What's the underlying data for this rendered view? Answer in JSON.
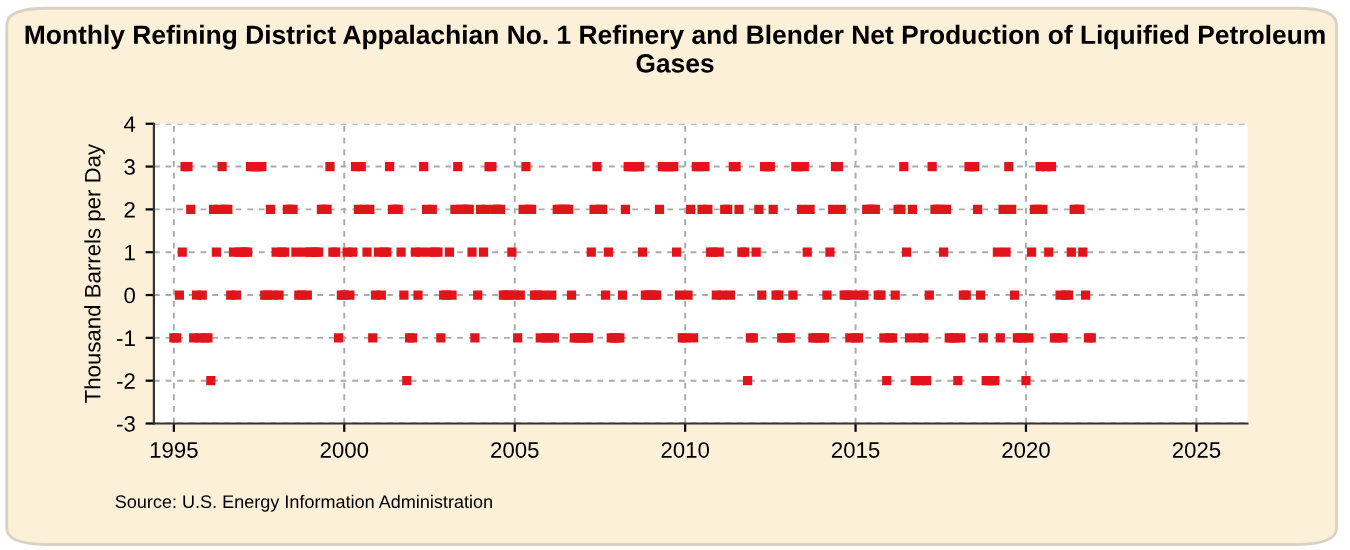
{
  "chart_data": {
    "type": "scatter",
    "title": "Monthly Refining District Appalachian No. 1 Refinery and Blender Net Production of Liquified Petroleum Gases",
    "ylabel": "Thousand Barrels per Day",
    "annotations": [
      "Source: U.S. Energy Information Administration"
    ],
    "x": [
      "1995-01",
      "1995-02",
      "1995-03",
      "1995-04",
      "1995-05",
      "1995-06",
      "1995-07",
      "1995-08",
      "1995-09",
      "1995-10",
      "1995-11",
      "1995-12",
      "1996-01",
      "1996-02",
      "1996-03",
      "1996-04",
      "1996-05",
      "1996-06",
      "1996-07",
      "1996-08",
      "1996-09",
      "1996-10",
      "1996-11",
      "1996-12",
      "1997-01",
      "1997-02",
      "1997-03",
      "1997-04",
      "1997-05",
      "1997-06",
      "1997-07",
      "1997-08",
      "1997-09",
      "1997-10",
      "1997-11",
      "1997-12",
      "1998-01",
      "1998-02",
      "1998-03",
      "1998-04",
      "1998-05",
      "1998-06",
      "1998-07",
      "1998-08",
      "1998-09",
      "1998-10",
      "1998-11",
      "1998-12",
      "1999-01",
      "1999-02",
      "1999-03",
      "1999-04",
      "1999-05",
      "1999-06",
      "1999-07",
      "1999-08",
      "1999-09",
      "1999-10",
      "1999-11",
      "1999-12",
      "2000-01",
      "2000-02",
      "2000-03",
      "2000-04",
      "2000-05",
      "2000-06",
      "2000-07",
      "2000-08",
      "2000-09",
      "2000-10",
      "2000-11",
      "2000-12",
      "2001-01",
      "2001-02",
      "2001-03",
      "2001-04",
      "2001-05",
      "2001-06",
      "2001-07",
      "2001-08",
      "2001-09",
      "2001-10",
      "2001-11",
      "2001-12",
      "2002-01",
      "2002-02",
      "2002-03",
      "2002-04",
      "2002-05",
      "2002-06",
      "2002-07",
      "2002-08",
      "2002-09",
      "2002-10",
      "2002-11",
      "2002-12",
      "2003-01",
      "2003-02",
      "2003-03",
      "2003-04",
      "2003-05",
      "2003-06",
      "2003-07",
      "2003-08",
      "2003-09",
      "2003-10",
      "2003-11",
      "2003-12",
      "2004-01",
      "2004-02",
      "2004-03",
      "2004-04",
      "2004-05",
      "2004-06",
      "2004-07",
      "2004-08",
      "2004-09",
      "2004-10",
      "2004-11",
      "2004-12",
      "2005-01",
      "2005-02",
      "2005-03",
      "2005-04",
      "2005-05",
      "2005-06",
      "2005-07",
      "2005-08",
      "2005-09",
      "2005-10",
      "2005-11",
      "2005-12",
      "2006-01",
      "2006-02",
      "2006-03",
      "2006-04",
      "2006-05",
      "2006-06",
      "2006-07",
      "2006-08",
      "2006-09",
      "2006-10",
      "2006-11",
      "2006-12",
      "2007-01",
      "2007-02",
      "2007-03",
      "2007-04",
      "2007-05",
      "2007-06",
      "2007-07",
      "2007-08",
      "2007-09",
      "2007-10",
      "2007-11",
      "2007-12",
      "2008-01",
      "2008-02",
      "2008-03",
      "2008-04",
      "2008-05",
      "2008-06",
      "2008-07",
      "2008-08",
      "2008-09",
      "2008-10",
      "2008-11",
      "2008-12",
      "2009-01",
      "2009-02",
      "2009-03",
      "2009-04",
      "2009-05",
      "2009-06",
      "2009-07",
      "2009-08",
      "2009-09",
      "2009-10",
      "2009-11",
      "2009-12",
      "2010-01",
      "2010-02",
      "2010-03",
      "2010-04",
      "2010-05",
      "2010-06",
      "2010-07",
      "2010-08",
      "2010-09",
      "2010-10",
      "2010-11",
      "2010-12",
      "2011-01",
      "2011-02",
      "2011-03",
      "2011-04",
      "2011-05",
      "2011-06",
      "2011-07",
      "2011-08",
      "2011-09",
      "2011-10",
      "2011-11",
      "2011-12",
      "2012-01",
      "2012-02",
      "2012-03",
      "2012-04",
      "2012-05",
      "2012-06",
      "2012-07",
      "2012-08",
      "2012-09",
      "2012-10",
      "2012-11",
      "2012-12",
      "2013-01",
      "2013-02",
      "2013-03",
      "2013-04",
      "2013-05",
      "2013-06",
      "2013-07",
      "2013-08",
      "2013-09",
      "2013-10",
      "2013-11",
      "2013-12",
      "2014-01",
      "2014-02",
      "2014-03",
      "2014-04",
      "2014-05",
      "2014-06",
      "2014-07",
      "2014-08",
      "2014-09",
      "2014-10",
      "2014-11",
      "2014-12",
      "2015-01",
      "2015-02",
      "2015-03",
      "2015-04",
      "2015-05",
      "2015-06",
      "2015-07",
      "2015-08",
      "2015-09",
      "2015-10",
      "2015-11",
      "2015-12",
      "2016-01",
      "2016-02",
      "2016-03",
      "2016-04",
      "2016-05",
      "2016-06",
      "2016-07",
      "2016-08",
      "2016-09",
      "2016-10",
      "2016-11",
      "2016-12",
      "2017-01",
      "2017-02",
      "2017-03",
      "2017-04",
      "2017-05",
      "2017-06",
      "2017-07",
      "2017-08",
      "2017-09",
      "2017-10",
      "2017-11",
      "2017-12",
      "2018-01",
      "2018-02",
      "2018-03",
      "2018-04",
      "2018-05",
      "2018-06",
      "2018-07",
      "2018-08",
      "2018-09",
      "2018-10",
      "2018-11",
      "2018-12",
      "2019-01",
      "2019-02",
      "2019-03",
      "2019-04",
      "2019-05",
      "2019-06",
      "2019-07",
      "2019-08",
      "2019-09",
      "2019-10",
      "2019-11",
      "2019-12",
      "2020-01",
      "2020-02",
      "2020-03",
      "2020-04",
      "2020-05",
      "2020-06",
      "2020-07",
      "2020-08",
      "2020-09",
      "2020-10",
      "2020-11",
      "2020-12",
      "2021-01",
      "2021-02",
      "2021-03",
      "2021-04",
      "2021-05",
      "2021-06",
      "2021-07",
      "2021-08",
      "2021-09",
      "2021-10",
      "2021-11",
      "2021-12"
    ],
    "series": [
      {
        "color": "#e2141b",
        "values": [
          -1,
          -1,
          0,
          1,
          3,
          3,
          2,
          -1,
          0,
          -1,
          0,
          -1,
          -1,
          -2,
          2,
          1,
          2,
          3,
          2,
          2,
          0,
          1,
          0,
          1,
          1,
          1,
          1,
          3,
          3,
          3,
          3,
          3,
          0,
          0,
          2,
          0,
          1,
          0,
          1,
          1,
          2,
          2,
          2,
          1,
          0,
          0,
          1,
          0,
          1,
          1,
          1,
          1,
          2,
          2,
          2,
          3,
          1,
          1,
          -1,
          0,
          0,
          1,
          0,
          1,
          3,
          2,
          3,
          2,
          1,
          2,
          -1,
          0,
          1,
          0,
          1,
          1,
          3,
          2,
          2,
          2,
          1,
          0,
          -2,
          -1,
          -1,
          1,
          0,
          1,
          3,
          2,
          1,
          2,
          1,
          1,
          -1,
          0,
          0,
          1,
          0,
          2,
          3,
          2,
          2,
          2,
          2,
          1,
          -1,
          0,
          2,
          1,
          2,
          3,
          3,
          2,
          2,
          2,
          0,
          0,
          0,
          1,
          0,
          -1,
          0,
          2,
          3,
          2,
          2,
          0,
          0,
          -1,
          0,
          -1,
          -1,
          0,
          -1,
          2,
          2,
          2,
          2,
          2,
          0,
          -1,
          -1,
          -1,
          -1,
          -1,
          -1,
          1,
          2,
          3,
          2,
          2,
          0,
          1,
          -1,
          -1,
          -1,
          -1,
          0,
          2,
          3,
          3,
          3,
          3,
          3,
          1,
          0,
          0,
          0,
          0,
          0,
          2,
          3,
          3,
          3,
          3,
          3,
          1,
          0,
          -1,
          -1,
          0,
          2,
          -1,
          3,
          3,
          2,
          3,
          2,
          1,
          1,
          0,
          1,
          0,
          2,
          2,
          0,
          3,
          3,
          2,
          1,
          1,
          -2,
          -1,
          -1,
          1,
          2,
          0,
          3,
          3,
          3,
          2,
          0,
          0,
          -1,
          -1,
          -1,
          -1,
          0,
          3,
          3,
          2,
          3,
          1,
          2,
          -1,
          -1,
          -1,
          -1,
          -1,
          0,
          1,
          2,
          3,
          3,
          2,
          0,
          0,
          -1,
          0,
          -1,
          -1,
          0,
          0,
          2,
          2,
          2,
          2,
          0,
          0,
          -1,
          -2,
          -1,
          -1,
          0,
          2,
          2,
          3,
          1,
          -1,
          2,
          -2,
          -1,
          -2,
          -1,
          -2,
          0,
          3,
          2,
          2,
          2,
          1,
          2,
          -1,
          -1,
          -1,
          -2,
          -1,
          0,
          0,
          3,
          3,
          3,
          2,
          0,
          -1,
          -2,
          -2,
          -2,
          -2,
          1,
          -1,
          2,
          1,
          3,
          2,
          0,
          -1,
          -1,
          -1,
          -2,
          -1,
          1,
          2,
          2,
          3,
          2,
          3,
          1,
          3,
          -1,
          -1,
          0,
          -1,
          0,
          0,
          1,
          2,
          2,
          2,
          1,
          0,
          -1,
          -1
        ]
      }
    ],
    "xlim": [
      "1994-06",
      "2026-07"
    ],
    "xticks": [
      {
        "value": "1995",
        "label": "1995"
      },
      {
        "value": "2000",
        "label": "2000"
      },
      {
        "value": "2005",
        "label": "2005"
      },
      {
        "value": "2010",
        "label": "2010"
      },
      {
        "value": "2015",
        "label": "2015"
      },
      {
        "value": "2020",
        "label": "2020"
      },
      {
        "value": "2025",
        "label": "2025"
      }
    ],
    "ylim": [
      -3,
      4
    ],
    "yticks": [
      -3,
      -2,
      -1,
      0,
      1,
      2,
      3,
      4
    ],
    "grid": true,
    "marker": "square",
    "legend": false
  }
}
